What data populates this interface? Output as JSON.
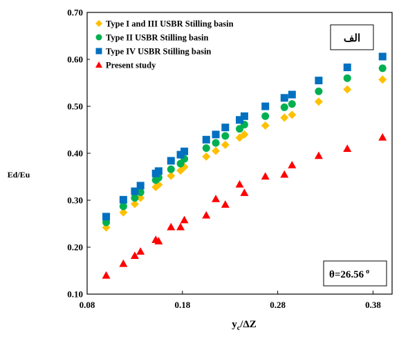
{
  "chart_data": {
    "type": "scatter",
    "xlabel_main": "y",
    "xlabel_sub": "c",
    "xlabel_rest": "/ΔZ",
    "ylabel": "Ed/Eu",
    "xlim": [
      0.08,
      0.4
    ],
    "ylim": [
      0.1,
      0.7
    ],
    "x_ticks": [
      0.08,
      0.18,
      0.28,
      0.38
    ],
    "x_tick_labels": [
      "0.08",
      "0.18",
      "0.28",
      "0.38"
    ],
    "y_ticks": [
      0.1,
      0.2,
      0.3,
      0.4,
      0.5,
      0.6,
      0.7
    ],
    "y_tick_labels": [
      "0.10",
      "0.20",
      "0.30",
      "0.40",
      "0.50",
      "0.60",
      "0.70"
    ],
    "legend_position": "top-left",
    "label_box": "الف",
    "theta_label": "θ=26.56",
    "theta_sup": "o",
    "series": [
      {
        "name": "Type I and III USBR Stilling basin",
        "marker": "diamond",
        "color": "#FFC000",
        "x": [
          0.1,
          0.118,
          0.13,
          0.136,
          0.152,
          0.155,
          0.168,
          0.178,
          0.182,
          0.205,
          0.215,
          0.225,
          0.24,
          0.245,
          0.267,
          0.287,
          0.295,
          0.323,
          0.353,
          0.39
        ],
        "y": [
          0.242,
          0.274,
          0.292,
          0.305,
          0.328,
          0.333,
          0.352,
          0.363,
          0.371,
          0.393,
          0.405,
          0.418,
          0.433,
          0.44,
          0.459,
          0.476,
          0.482,
          0.51,
          0.536,
          0.557
        ]
      },
      {
        "name": "Type II USBR Stilling basin",
        "marker": "circle",
        "color": "#00B050",
        "x": [
          0.1,
          0.118,
          0.13,
          0.136,
          0.152,
          0.155,
          0.168,
          0.178,
          0.182,
          0.205,
          0.215,
          0.225,
          0.24,
          0.245,
          0.267,
          0.287,
          0.295,
          0.323,
          0.353,
          0.39
        ],
        "y": [
          0.253,
          0.287,
          0.305,
          0.317,
          0.343,
          0.348,
          0.366,
          0.378,
          0.388,
          0.411,
          0.422,
          0.437,
          0.452,
          0.461,
          0.479,
          0.498,
          0.505,
          0.532,
          0.56,
          0.581
        ]
      },
      {
        "name": "Type IV USBR Stilling basin",
        "marker": "square",
        "color": "#0070C0",
        "x": [
          0.1,
          0.118,
          0.13,
          0.136,
          0.152,
          0.155,
          0.168,
          0.178,
          0.182,
          0.205,
          0.215,
          0.225,
          0.24,
          0.245,
          0.267,
          0.287,
          0.295,
          0.323,
          0.353,
          0.39
        ],
        "y": [
          0.265,
          0.301,
          0.319,
          0.331,
          0.357,
          0.362,
          0.384,
          0.397,
          0.404,
          0.429,
          0.44,
          0.455,
          0.471,
          0.479,
          0.5,
          0.518,
          0.525,
          0.555,
          0.583,
          0.606
        ]
      },
      {
        "name": "Present study",
        "marker": "triangle",
        "color": "#FF0000",
        "x": [
          0.1,
          0.118,
          0.13,
          0.136,
          0.152,
          0.155,
          0.168,
          0.178,
          0.182,
          0.205,
          0.215,
          0.225,
          0.24,
          0.245,
          0.267,
          0.287,
          0.295,
          0.323,
          0.353,
          0.39
        ],
        "y": [
          0.14,
          0.165,
          0.182,
          0.191,
          0.216,
          0.213,
          0.243,
          0.243,
          0.258,
          0.268,
          0.303,
          0.291,
          0.334,
          0.316,
          0.351,
          0.355,
          0.375,
          0.395,
          0.41,
          0.434
        ]
      }
    ]
  }
}
